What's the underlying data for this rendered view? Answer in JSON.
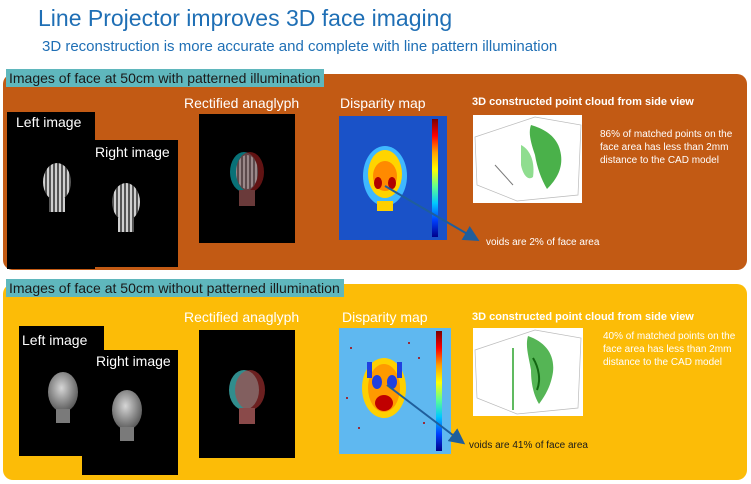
{
  "slide": {
    "title": "Line Projector improves 3D face imaging",
    "subtitle": "3D reconstruction is more accurate and complete with line pattern illumination"
  },
  "panels": [
    {
      "label": "Images of face at 50cm with patterned illumination",
      "left_image": "Left image",
      "right_image": "Right image",
      "anaglyph_label": "Rectified anaglyph",
      "disparity_label": "Disparity map",
      "pointcloud_label": "3D constructed point cloud from side view",
      "stat": "86% of matched points on the face area has less than 2mm distance to  the CAD model",
      "voids": "voids are 2% of face area"
    },
    {
      "label": "Images of face at 50cm without patterned illumination",
      "left_image": "Left image",
      "right_image": "Right image",
      "anaglyph_label": "Rectified anaglyph",
      "disparity_label": "Disparity map",
      "pointcloud_label": "3D constructed point cloud from side view",
      "stat": "40% of matched points on the face area has less than 2mm distance to  the CAD model",
      "voids": "voids are 41% of face area"
    }
  ],
  "colors": {
    "title": "#1f6fb5",
    "panel_top": "#c25a14",
    "panel_bottom": "#fcbc07",
    "label_bg": "#5fb7bd",
    "arrow": "#1f5e9c"
  }
}
